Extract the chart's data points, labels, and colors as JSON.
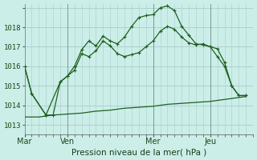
{
  "xlabel": "Pression niveau de la mer( hPa )",
  "background_color": "#cceee8",
  "grid_color": "#aacccc",
  "line_color": "#1e6020",
  "ylim": [
    1012.5,
    1019.2
  ],
  "yticks": [
    1013,
    1014,
    1015,
    1016,
    1017,
    1018
  ],
  "xtick_labels": [
    "Mar",
    "Ven",
    "Mer",
    "Jeu"
  ],
  "xtick_positions": [
    0,
    6,
    18,
    26
  ],
  "vline_positions": [
    0,
    6,
    18,
    26
  ],
  "xlim": [
    0,
    32
  ],
  "series1_x": [
    0,
    1,
    3,
    4,
    5,
    6,
    7,
    8,
    9,
    10,
    11,
    12,
    13,
    14,
    15,
    16,
    17,
    18,
    19,
    20,
    21,
    22,
    23,
    24,
    25,
    26,
    27,
    28,
    29,
    30,
    31
  ],
  "series1_y": [
    1016.0,
    1014.6,
    1013.5,
    1013.5,
    1015.2,
    1015.5,
    1015.8,
    1016.65,
    1016.5,
    1016.8,
    1017.3,
    1017.05,
    1016.65,
    1016.5,
    1016.6,
    1016.7,
    1017.0,
    1017.3,
    1017.8,
    1018.05,
    1017.9,
    1017.5,
    1017.2,
    1017.1,
    1017.15,
    1017.0,
    1016.5,
    1016.0,
    1015.0,
    1014.5,
    1014.5
  ],
  "series2_x": [
    0,
    1,
    3,
    5,
    6,
    7,
    8,
    9,
    10,
    11,
    12,
    13,
    14,
    15,
    16,
    17,
    18,
    19,
    20,
    21,
    22,
    23,
    24,
    25,
    26,
    27,
    28,
    29,
    30,
    31
  ],
  "series2_y": [
    1016.0,
    1014.6,
    1013.5,
    1015.2,
    1015.5,
    1016.0,
    1016.85,
    1017.3,
    1017.05,
    1017.55,
    1017.3,
    1017.15,
    1017.5,
    1018.05,
    1018.5,
    1018.6,
    1018.65,
    1019.0,
    1019.1,
    1018.85,
    1018.05,
    1017.6,
    1017.15,
    1017.1,
    1017.0,
    1016.9,
    1016.2,
    1015.0,
    1014.5,
    1014.5
  ],
  "series3_x": [
    0,
    2,
    4,
    6,
    8,
    10,
    12,
    14,
    16,
    18,
    20,
    22,
    24,
    26,
    28,
    30,
    31
  ],
  "series3_y": [
    1013.4,
    1013.4,
    1013.5,
    1013.55,
    1013.6,
    1013.7,
    1013.75,
    1013.85,
    1013.9,
    1013.95,
    1014.05,
    1014.1,
    1014.15,
    1014.2,
    1014.3,
    1014.4,
    1014.45
  ]
}
